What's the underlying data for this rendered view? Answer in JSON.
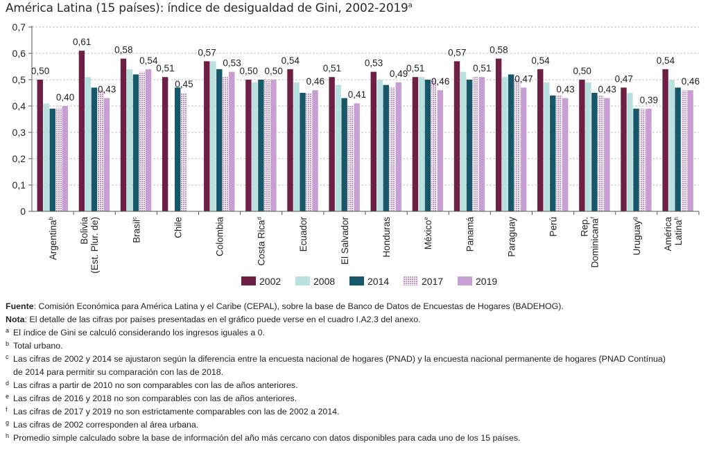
{
  "title": {
    "text": "América Latina (15 países): índice de desigualdad de Gini, 2002-2019",
    "sup": "a"
  },
  "colors": {
    "2002": "#6d1f45",
    "2008": "#b9e0e0",
    "2014": "#17576a",
    "2017": "#d4b0d8",
    "2019": "#c79fd2"
  },
  "chart_data": {
    "type": "bar",
    "title": "América Latina (15 países): índice de desigualdad de Gini, 2002-2019",
    "xlabel": "",
    "ylabel": "",
    "ylim": [
      0,
      0.7
    ],
    "yticks": [
      "0",
      "0,1",
      "0,2",
      "0,3",
      "0,4",
      "0,5",
      "0,6",
      "0,7"
    ],
    "grid": "horizontal-dashed",
    "legend_position": "bottom",
    "categories": [
      {
        "name": [
          "Argentina"
        ],
        "sup": "b"
      },
      {
        "name": [
          "Bolivia",
          "(Est. Plur. de)"
        ],
        "sup": ""
      },
      {
        "name": [
          "Brasil"
        ],
        "sup": "c"
      },
      {
        "name": [
          "Chile"
        ],
        "sup": ""
      },
      {
        "name": [
          "Colombia"
        ],
        "sup": ""
      },
      {
        "name": [
          "Costa Rica"
        ],
        "sup": "d"
      },
      {
        "name": [
          "Ecuador"
        ],
        "sup": ""
      },
      {
        "name": [
          "El Salvador"
        ],
        "sup": ""
      },
      {
        "name": [
          "Honduras"
        ],
        "sup": ""
      },
      {
        "name": [
          "México"
        ],
        "sup": "e"
      },
      {
        "name": [
          "Panamá"
        ],
        "sup": ""
      },
      {
        "name": [
          "Paraguay"
        ],
        "sup": ""
      },
      {
        "name": [
          "Perú"
        ],
        "sup": ""
      },
      {
        "name": [
          "Rep.",
          "Dominicana"
        ],
        "sup": "f"
      },
      {
        "name": [
          "Uruguay"
        ],
        "sup": "g"
      },
      {
        "name": [
          "América",
          "Latina"
        ],
        "sup": "h"
      }
    ],
    "series": [
      {
        "name": "2002",
        "pattern": "solid",
        "values": [
          0.5,
          0.61,
          0.58,
          0.51,
          0.57,
          0.5,
          0.54,
          0.51,
          0.53,
          0.51,
          0.57,
          0.58,
          0.54,
          0.5,
          0.47,
          0.54
        ]
      },
      {
        "name": "2008",
        "pattern": "solid",
        "values": [
          0.41,
          0.51,
          0.54,
          null,
          0.57,
          0.49,
          0.49,
          0.48,
          0.5,
          0.51,
          0.53,
          0.51,
          0.49,
          0.49,
          0.45,
          0.5
        ]
      },
      {
        "name": "2014",
        "pattern": "solid",
        "values": [
          0.39,
          0.47,
          0.52,
          0.47,
          0.54,
          0.5,
          0.45,
          0.43,
          0.48,
          0.5,
          0.5,
          0.52,
          0.44,
          0.45,
          0.39,
          0.47
        ]
      },
      {
        "name": "2017",
        "pattern": "dotted",
        "values": [
          0.39,
          0.46,
          0.53,
          0.45,
          0.51,
          0.5,
          0.45,
          0.4,
          0.47,
          0.5,
          0.51,
          0.5,
          0.44,
          0.44,
          0.39,
          0.46
        ]
      },
      {
        "name": "2019",
        "pattern": "solid",
        "values": [
          0.4,
          0.43,
          0.54,
          null,
          0.53,
          0.5,
          0.46,
          0.41,
          0.49,
          0.46,
          0.51,
          0.47,
          0.43,
          0.43,
          0.39,
          0.46
        ]
      }
    ],
    "data_labels": [
      {
        "category": 0,
        "values": [
          "0,50",
          "0,40"
        ],
        "series": [
          0,
          4
        ]
      },
      {
        "category": 1,
        "values": [
          "0,61",
          "0,43"
        ],
        "series": [
          0,
          4
        ]
      },
      {
        "category": 2,
        "values": [
          "0,58",
          "0,54"
        ],
        "series": [
          0,
          4
        ]
      },
      {
        "category": 3,
        "values": [
          "0,51",
          "0,45"
        ],
        "series": [
          0,
          3
        ]
      },
      {
        "category": 4,
        "values": [
          "0,57",
          "0,53"
        ],
        "series": [
          0,
          4
        ]
      },
      {
        "category": 5,
        "values": [
          "0,50",
          "0,50"
        ],
        "series": [
          0,
          4
        ]
      },
      {
        "category": 6,
        "values": [
          "0,54",
          "0,46"
        ],
        "series": [
          0,
          4
        ]
      },
      {
        "category": 7,
        "values": [
          "0,51",
          "0,41"
        ],
        "series": [
          0,
          4
        ]
      },
      {
        "category": 8,
        "values": [
          "0,53",
          "0,49"
        ],
        "series": [
          0,
          4
        ]
      },
      {
        "category": 9,
        "values": [
          "0,51",
          "0,46"
        ],
        "series": [
          0,
          4
        ]
      },
      {
        "category": 10,
        "values": [
          "0,57",
          "0,51"
        ],
        "series": [
          0,
          4
        ]
      },
      {
        "category": 11,
        "values": [
          "0,58",
          "0,47"
        ],
        "series": [
          0,
          4
        ]
      },
      {
        "category": 12,
        "values": [
          "0,54",
          "0,43"
        ],
        "series": [
          0,
          4
        ]
      },
      {
        "category": 13,
        "values": [
          "0,50",
          "0,43"
        ],
        "series": [
          0,
          4
        ]
      },
      {
        "category": 14,
        "values": [
          "0,47",
          "0,39"
        ],
        "series": [
          0,
          4
        ]
      },
      {
        "category": 15,
        "values": [
          "0,54",
          "0,46"
        ],
        "series": [
          0,
          4
        ]
      }
    ]
  },
  "notes": {
    "source_label": "Fuente",
    "source_text": ": Comisión Económica para América Latina y el Caribe (CEPAL), sobre la base de Banco de Datos de Encuestas de Hogares (BADEHOG).",
    "note_label": "Nota",
    "note_text": ": El detalle de las cifras por países presentadas en el gráfico puede verse en el cuadro I.A2.3 del anexo.",
    "footnotes": [
      {
        "mark": "a",
        "text": "El índice de Gini se calculó considerando los ingresos iguales a 0."
      },
      {
        "mark": "b",
        "text": "Total urbano."
      },
      {
        "mark": "c",
        "text": "Las cifras de 2002 y 2014 se ajustaron según la diferencia entre la encuesta nacional de hogares (PNAD) y la encuesta nacional permanente de hogares (PNAD Contínua)",
        "cont": "de 2014 para permitir su comparación con las de 2018."
      },
      {
        "mark": "d",
        "text": "Las cifras a partir de 2010 no son comparables con las de años anteriores."
      },
      {
        "mark": "e",
        "text": "Las cifras de 2016 y 2018 no son comparables con las de años anteriores."
      },
      {
        "mark": "f",
        "text": "Las cifras de 2017 y 2019 no son estrictamente comparables con las de 2002 a 2014."
      },
      {
        "mark": "g",
        "text": "Las cifras de 2002 corresponden al área urbana."
      },
      {
        "mark": "h",
        "text": "Promedio simple calculado sobre la base de información del año más cercano con datos disponibles para cada uno de los 15 países."
      }
    ]
  }
}
